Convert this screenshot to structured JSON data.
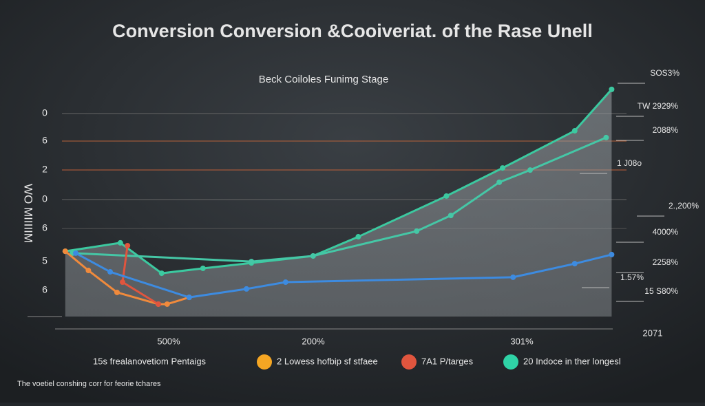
{
  "chart_data": {
    "type": "line",
    "title": "Conversion  Conversion &Cooiveriat. of the Rase Unell",
    "subtitle": "Beck Coiloles Funimg Stage",
    "ylabel": "WO MIIIIIM",
    "left_labels": [
      "0",
      "6",
      "2",
      "0",
      "6",
      "5",
      "6"
    ],
    "right_labels": [
      "SOS3%",
      "TW 2929%",
      "2088%",
      "1 J08o",
      "2.,200%",
      "4000%",
      "2258%",
      "1.57%",
      "15 S80%"
    ],
    "x_labels": [
      "500%",
      "200%",
      "301%",
      "2071"
    ],
    "xlim": [
      0,
      100
    ],
    "ylim": [
      0,
      100
    ],
    "series": [
      {
        "color": "#3cc9a0",
        "x": [
          0.6,
          10.6,
          18.1,
          25.6,
          34.4,
          45.6,
          53.8,
          69.8,
          80,
          93.1,
          99.8
        ],
        "values": [
          27.9,
          31.5,
          18.5,
          20.6,
          22.9,
          25.9,
          34.1,
          51.5,
          63.5,
          79.4,
          97.1
        ]
      },
      {
        "color": "#45c7a6",
        "x": [
          1.9,
          34.4,
          45.6,
          64.4,
          70.6,
          79.4,
          85,
          98.8
        ],
        "values": [
          27.1,
          23.5,
          25.9,
          36.5,
          43.2,
          57.4,
          62.6,
          76.5
        ]
      },
      {
        "color": "#f08a3c",
        "x": [
          0.6,
          4.8,
          10,
          17.5,
          19.1,
          23.1
        ],
        "values": [
          27.9,
          19.7,
          10.3,
          5.3,
          5.3,
          8.2
        ]
      },
      {
        "color": "#e0553e",
        "x": [
          11.9,
          11,
          17.5
        ],
        "values": [
          30.3,
          14.7,
          5.3
        ]
      },
      {
        "color": "#3d8be0",
        "x": [
          2.5,
          8.75,
          23.1,
          33.5,
          40.6,
          81.9,
          93.1,
          99.8
        ],
        "values": [
          27.1,
          19.1,
          8.2,
          11.8,
          14.7,
          16.8,
          22.6,
          26.5
        ]
      }
    ],
    "legend": [
      {
        "label": "15s frealanovetiom Pentaigs"
      },
      {
        "label": "2  Lowess hofbip sf stfaee",
        "color": "#f5a623"
      },
      {
        "label": "7A1 P/targes",
        "color": "#e0553e"
      },
      {
        "label": "20 Indoce in ther longesl",
        "color": "#2fd3a6"
      }
    ],
    "footer": "The voetiel conshing corr for feorie tchares"
  }
}
